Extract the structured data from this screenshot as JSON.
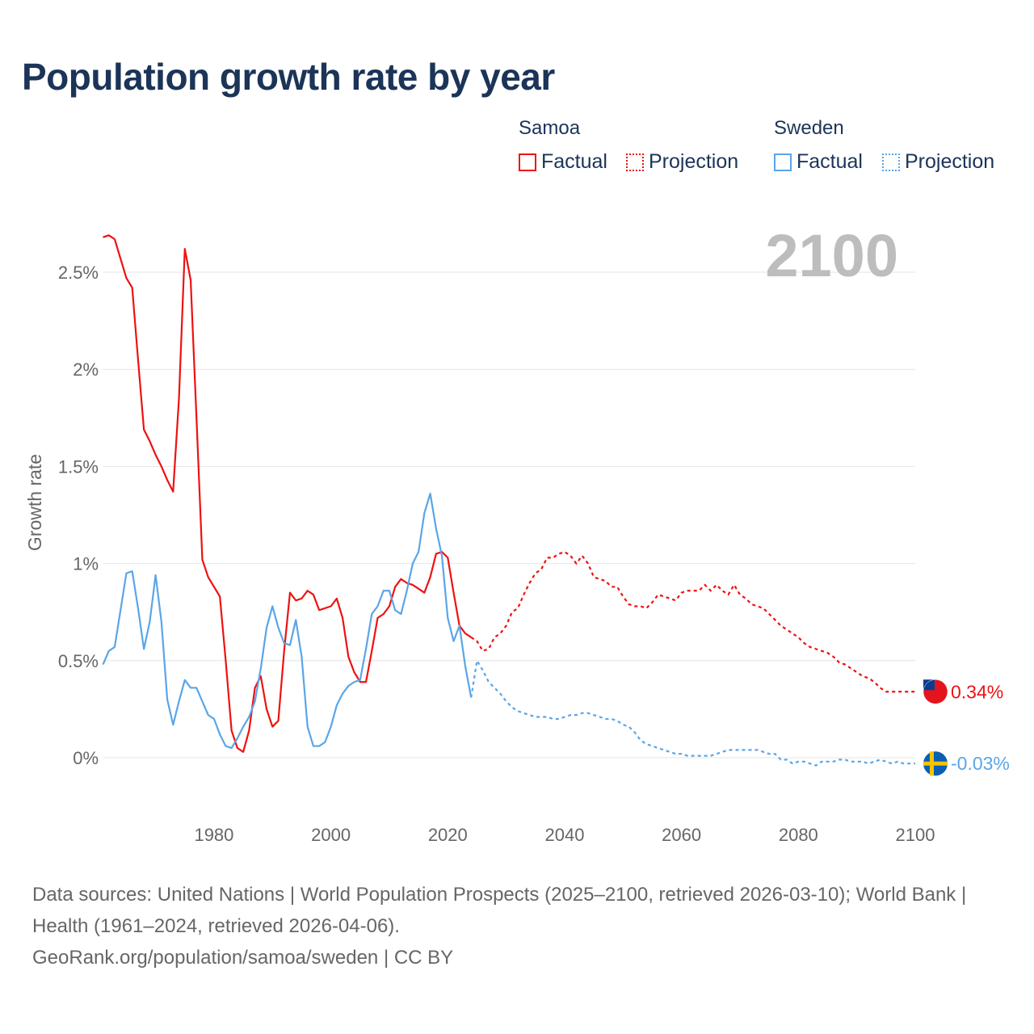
{
  "title": "Population growth rate by year",
  "legend": {
    "groups": [
      {
        "name": "Samoa",
        "factual": "Factual",
        "projection": "Projection",
        "color": "#ee1111"
      },
      {
        "name": "Sweden",
        "factual": "Factual",
        "projection": "Projection",
        "color": "#5aa5e8"
      }
    ]
  },
  "sources": {
    "line1": "Data sources: United Nations | World Population Prospects (2025–2100, retrieved 2026-03-10); World Bank | Health (1961–2024, retrieved 2026-04-06).",
    "line2": "GeoRank.org/population/samoa/sweden | CC BY"
  },
  "chart_data": {
    "type": "line",
    "title": "Population growth rate by year",
    "ylabel": "Growth rate",
    "xlabel": "",
    "year_watermark": "2100",
    "xlim": [
      1961,
      2100
    ],
    "ylim": [
      -0.28,
      2.75
    ],
    "x_ticks": [
      1980,
      2000,
      2020,
      2040,
      2060,
      2080,
      2100
    ],
    "x_tick_labels": [
      "1980",
      "2000",
      "2020",
      "2040",
      "2060",
      "2080",
      "2100"
    ],
    "y_ticks": [
      0,
      0.5,
      1,
      1.5,
      2,
      2.5
    ],
    "y_tick_labels": [
      "0%",
      "0.5%",
      "1%",
      "1.5%",
      "2%",
      "2.5%"
    ],
    "grid": true,
    "legend_position": "top-right",
    "series": [
      {
        "name": "Samoa",
        "color": "#ee1111",
        "factual_start": 1961,
        "factual": [
          2.68,
          2.69,
          2.67,
          2.57,
          2.47,
          2.42,
          2.05,
          1.69,
          1.63,
          1.56,
          1.5,
          1.43,
          1.37,
          1.85,
          2.62,
          2.46,
          1.75,
          1.02,
          0.93,
          0.88,
          0.83,
          0.5,
          0.14,
          0.05,
          0.03,
          0.14,
          0.36,
          0.42,
          0.25,
          0.16,
          0.19,
          0.55,
          0.85,
          0.81,
          0.82,
          0.86,
          0.84,
          0.76,
          0.77,
          0.78,
          0.82,
          0.72,
          0.52,
          0.44,
          0.39,
          0.39,
          0.55,
          0.72,
          0.74,
          0.78,
          0.88,
          0.92,
          0.9,
          0.89,
          0.87,
          0.85,
          0.93,
          1.05,
          1.06,
          1.03,
          0.85,
          0.68,
          0.64,
          0.62
        ],
        "projection_start": 2025,
        "projection": [
          0.6,
          0.55,
          0.56,
          0.62,
          0.64,
          0.68,
          0.75,
          0.77,
          0.84,
          0.9,
          0.95,
          0.97,
          1.03,
          1.03,
          1.05,
          1.06,
          1.04,
          1.0,
          1.04,
          1.0,
          0.93,
          0.92,
          0.91,
          0.88,
          0.88,
          0.83,
          0.79,
          0.78,
          0.78,
          0.77,
          0.8,
          0.84,
          0.83,
          0.82,
          0.81,
          0.85,
          0.86,
          0.86,
          0.86,
          0.89,
          0.86,
          0.89,
          0.86,
          0.84,
          0.89,
          0.84,
          0.82,
          0.79,
          0.78,
          0.77,
          0.74,
          0.71,
          0.68,
          0.66,
          0.64,
          0.62,
          0.59,
          0.57,
          0.56,
          0.55,
          0.54,
          0.52,
          0.49,
          0.48,
          0.46,
          0.44,
          0.42,
          0.41,
          0.39,
          0.36,
          0.34,
          0.34,
          0.34,
          0.34,
          0.34,
          0.34
        ],
        "end_label": "0.34%"
      },
      {
        "name": "Sweden",
        "color": "#5aa5e8",
        "factual_start": 1961,
        "factual": [
          0.48,
          0.55,
          0.57,
          0.76,
          0.95,
          0.96,
          0.77,
          0.56,
          0.7,
          0.94,
          0.7,
          0.3,
          0.17,
          0.29,
          0.4,
          0.36,
          0.36,
          0.29,
          0.22,
          0.2,
          0.12,
          0.06,
          0.05,
          0.1,
          0.16,
          0.21,
          0.29,
          0.46,
          0.67,
          0.78,
          0.67,
          0.59,
          0.58,
          0.71,
          0.52,
          0.16,
          0.06,
          0.06,
          0.08,
          0.16,
          0.27,
          0.33,
          0.37,
          0.39,
          0.4,
          0.56,
          0.74,
          0.78,
          0.86,
          0.86,
          0.76,
          0.74,
          0.86,
          1.0,
          1.06,
          1.26,
          1.36,
          1.18,
          1.04,
          0.72,
          0.6,
          0.68,
          0.47,
          0.31
        ],
        "projection_start": 2025,
        "projection": [
          0.5,
          0.45,
          0.39,
          0.36,
          0.33,
          0.29,
          0.26,
          0.24,
          0.23,
          0.22,
          0.21,
          0.21,
          0.21,
          0.2,
          0.2,
          0.21,
          0.22,
          0.22,
          0.23,
          0.23,
          0.22,
          0.21,
          0.2,
          0.2,
          0.19,
          0.17,
          0.16,
          0.13,
          0.09,
          0.07,
          0.06,
          0.05,
          0.04,
          0.03,
          0.02,
          0.02,
          0.01,
          0.01,
          0.01,
          0.01,
          0.01,
          0.02,
          0.03,
          0.04,
          0.04,
          0.04,
          0.04,
          0.04,
          0.04,
          0.03,
          0.02,
          0.02,
          -0.01,
          -0.01,
          -0.03,
          -0.02,
          -0.02,
          -0.03,
          -0.04,
          -0.02,
          -0.02,
          -0.02,
          -0.01,
          -0.01,
          -0.02,
          -0.02,
          -0.02,
          -0.03,
          -0.02,
          -0.01,
          -0.02,
          -0.03,
          -0.02,
          -0.03,
          -0.03,
          -0.03
        ],
        "end_label": "-0.03%"
      }
    ]
  }
}
